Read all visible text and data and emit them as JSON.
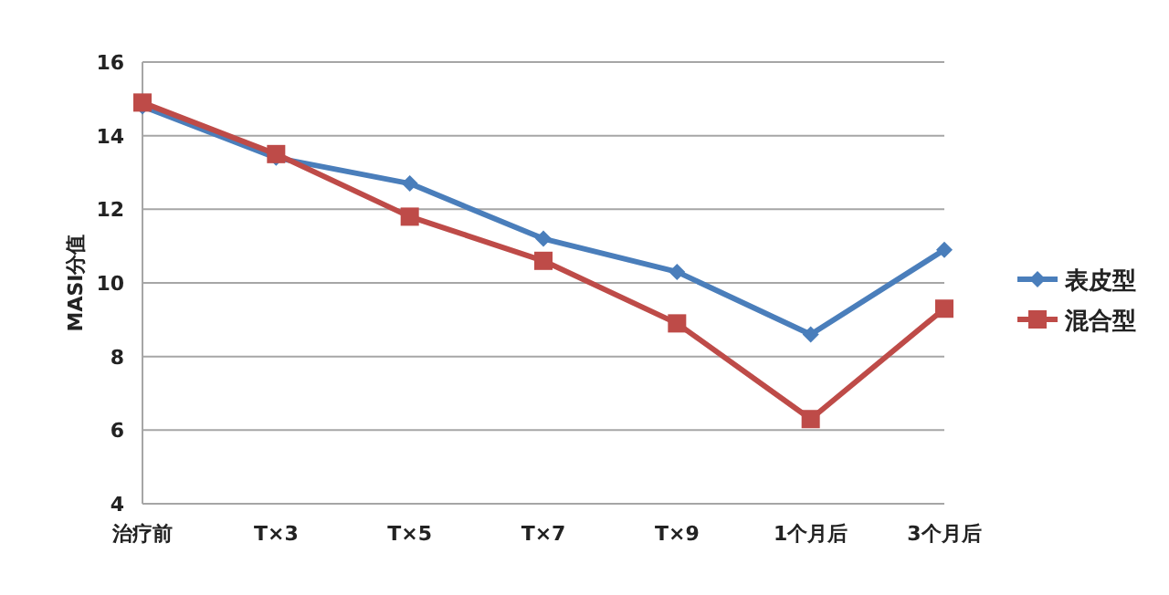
{
  "chart_data": {
    "type": "line",
    "ylabel": "MASI分值",
    "categories": [
      "治疗前",
      "T×3",
      "T×5",
      "T×7",
      "T×9",
      "1个月后",
      "3个月后"
    ],
    "series": [
      {
        "name": "表皮型",
        "color": "#4a7ebb",
        "marker": "diamond",
        "values": [
          14.8,
          13.4,
          12.7,
          11.2,
          10.3,
          8.6,
          10.9
        ]
      },
      {
        "name": "混合型",
        "color": "#be4b48",
        "marker": "square",
        "values": [
          14.9,
          13.5,
          11.8,
          10.6,
          8.9,
          6.3,
          9.3
        ]
      }
    ],
    "ylim": [
      4,
      16
    ],
    "yticks": [
      4,
      6,
      8,
      10,
      12,
      14,
      16
    ],
    "grid": "y",
    "legend": "right",
    "line_style": "solid"
  }
}
